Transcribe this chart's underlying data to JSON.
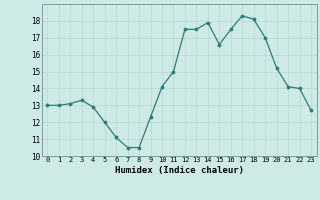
{
  "x": [
    0,
    1,
    2,
    3,
    4,
    5,
    6,
    7,
    8,
    9,
    10,
    11,
    12,
    13,
    14,
    15,
    16,
    17,
    18,
    19,
    20,
    21,
    22,
    23
  ],
  "y": [
    13,
    13,
    13.1,
    13.3,
    12.9,
    12.0,
    11.1,
    10.5,
    10.5,
    12.3,
    14.1,
    15.0,
    17.5,
    17.5,
    17.9,
    16.6,
    17.5,
    18.3,
    18.1,
    17.0,
    15.2,
    14.1,
    14.0,
    12.7
  ],
  "xlabel": "Humidex (Indice chaleur)",
  "ylim": [
    10,
    19
  ],
  "xlim": [
    -0.5,
    23.5
  ],
  "yticks": [
    10,
    11,
    12,
    13,
    14,
    15,
    16,
    17,
    18
  ],
  "xticks": [
    0,
    1,
    2,
    3,
    4,
    5,
    6,
    7,
    8,
    9,
    10,
    11,
    12,
    13,
    14,
    15,
    16,
    17,
    18,
    19,
    20,
    21,
    22,
    23
  ],
  "xtick_labels": [
    "0",
    "1",
    "2",
    "3",
    "4",
    "5",
    "6",
    "7",
    "8",
    "9",
    "10",
    "11",
    "12",
    "13",
    "14",
    "15",
    "16",
    "17",
    "18",
    "19",
    "20",
    "21",
    "22",
    "23"
  ],
  "line_color": "#2d7d74",
  "marker_color": "#2d7d74",
  "bg_color": "#ceeae7",
  "grid_color": "#b8d8d5",
  "spine_color": "#7a9e9b"
}
